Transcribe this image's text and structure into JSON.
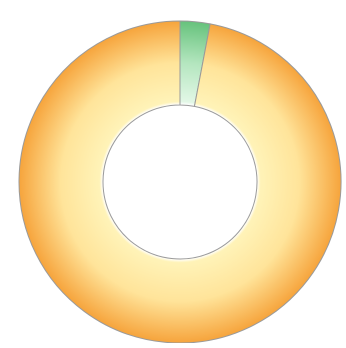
{
  "chart_data": {
    "type": "pie",
    "donut": true,
    "categories": [
      "",
      ""
    ],
    "values": [
      97,
      3
    ],
    "colors": [
      "#f5a23a",
      "#77c98a"
    ],
    "legend_text": ""
  }
}
